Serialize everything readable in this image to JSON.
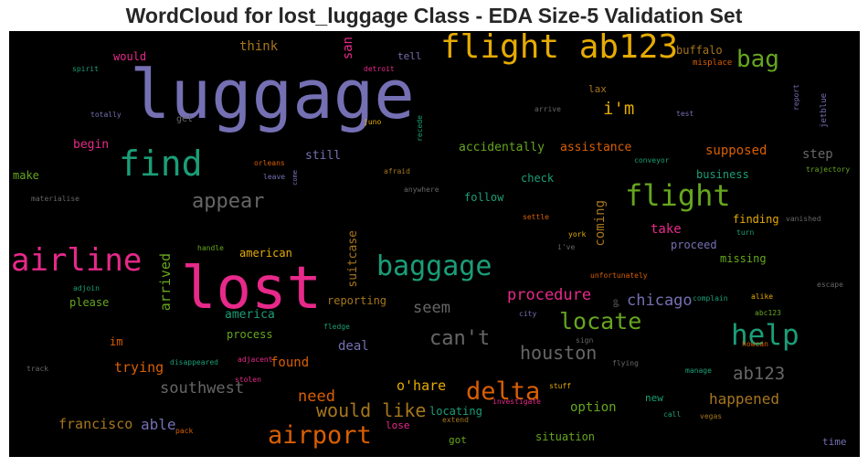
{
  "chart_data": {
    "type": "wordcloud",
    "title": "WordCloud for lost_luggage Class - EDA Size-5 Validation Set",
    "background": "#000000",
    "colormap": "Dark2",
    "words": [
      {
        "text": "luggage",
        "color": "#7570b3"
      },
      {
        "text": "lost",
        "color": "#e7298a"
      },
      {
        "text": "flight ab123",
        "color": "#e6ab02"
      },
      {
        "text": "find",
        "color": "#1b9e77"
      },
      {
        "text": "flight",
        "color": "#66a61e"
      },
      {
        "text": "baggage",
        "color": "#1b9e77"
      },
      {
        "text": "airline",
        "color": "#e7298a"
      },
      {
        "text": "airport",
        "color": "#d95f02"
      },
      {
        "text": "help",
        "color": "#1b9e77"
      },
      {
        "text": "delta",
        "color": "#d95f02"
      },
      {
        "text": "locate",
        "color": "#66a61e"
      },
      {
        "text": "bag",
        "color": "#66a61e"
      },
      {
        "text": "appear",
        "color": "#666666"
      },
      {
        "text": "can't",
        "color": "#666666"
      },
      {
        "text": "houston",
        "color": "#666666"
      },
      {
        "text": "would like",
        "color": "#a6761d"
      },
      {
        "text": "ab123",
        "color": "#666666"
      },
      {
        "text": "i'm",
        "color": "#e6ab02"
      },
      {
        "text": "chicago",
        "color": "#7570b3"
      },
      {
        "text": "procedure",
        "color": "#e7298a"
      },
      {
        "text": "need",
        "color": "#d95f02"
      },
      {
        "text": "southwest",
        "color": "#666666"
      },
      {
        "text": "seem",
        "color": "#666666"
      },
      {
        "text": "happened",
        "color": "#a6761d"
      },
      {
        "text": "francisco",
        "color": "#a6761d"
      },
      {
        "text": "able",
        "color": "#7570b3"
      },
      {
        "text": "o'hare",
        "color": "#e6ab02"
      },
      {
        "text": "trying",
        "color": "#d95f02"
      },
      {
        "text": "supposed",
        "color": "#d95f02"
      },
      {
        "text": "arrived",
        "color": "#66a61e"
      },
      {
        "text": "suitcase",
        "color": "#a6761d"
      },
      {
        "text": "coming",
        "color": "#a6761d"
      },
      {
        "text": "think",
        "color": "#a6761d"
      },
      {
        "text": "san",
        "color": "#e7298a"
      },
      {
        "text": "step",
        "color": "#666666"
      },
      {
        "text": "take",
        "color": "#e7298a"
      },
      {
        "text": "found",
        "color": "#d95f02"
      },
      {
        "text": "option",
        "color": "#66a61e"
      },
      {
        "text": "deal",
        "color": "#7570b3"
      },
      {
        "text": "accidentally",
        "color": "#66a61e"
      },
      {
        "text": "assistance",
        "color": "#d95f02"
      },
      {
        "text": "still",
        "color": "#7570b3"
      },
      {
        "text": "begin",
        "color": "#e7298a"
      },
      {
        "text": "america",
        "color": "#1b9e77"
      },
      {
        "text": "american",
        "color": "#e6ab02"
      },
      {
        "text": "reporting",
        "color": "#a6761d"
      },
      {
        "text": "process",
        "color": "#66a61e"
      },
      {
        "text": "locating",
        "color": "#1b9e77"
      },
      {
        "text": "situation",
        "color": "#66a61e"
      },
      {
        "text": "missing",
        "color": "#66a61e"
      },
      {
        "text": "proceed",
        "color": "#7570b3"
      },
      {
        "text": "business",
        "color": "#1b9e77"
      },
      {
        "text": "finding",
        "color": "#e6ab02"
      },
      {
        "text": "follow",
        "color": "#1b9e77"
      },
      {
        "text": "check",
        "color": "#1b9e77"
      },
      {
        "text": "buffalo",
        "color": "#a6761d"
      },
      {
        "text": "would",
        "color": "#e7298a"
      },
      {
        "text": "please",
        "color": "#66a61e"
      },
      {
        "text": "make",
        "color": "#66a61e"
      },
      {
        "text": "im",
        "color": "#d95f02"
      },
      {
        "text": "new",
        "color": "#1b9e77"
      },
      {
        "text": "got",
        "color": "#66a61e"
      },
      {
        "text": "lose",
        "color": "#e7298a"
      },
      {
        "text": "tell",
        "color": "#7570b3"
      },
      {
        "text": "lax",
        "color": "#a6761d"
      },
      {
        "text": "misplace",
        "color": "#d95f02"
      },
      {
        "text": "spirit",
        "color": "#1b9e77"
      },
      {
        "text": "detroit",
        "color": "#e7298a"
      },
      {
        "text": "totally",
        "color": "#7570b3"
      },
      {
        "text": "get",
        "color": "#666666"
      },
      {
        "text": "juno",
        "color": "#e6ab02"
      },
      {
        "text": "recede",
        "color": "#1b9e77"
      },
      {
        "text": "arrive",
        "color": "#666666"
      },
      {
        "text": "test",
        "color": "#7570b3"
      },
      {
        "text": "report",
        "color": "#7570b3"
      },
      {
        "text": "jetblue",
        "color": "#7570b3"
      },
      {
        "text": "conveyor",
        "color": "#1b9e77"
      },
      {
        "text": "trajectory",
        "color": "#66a61e"
      },
      {
        "text": "orleans",
        "color": "#d95f02"
      },
      {
        "text": "leave",
        "color": "#7570b3"
      },
      {
        "text": "come",
        "color": "#7570b3"
      },
      {
        "text": "afraid",
        "color": "#a6761d"
      },
      {
        "text": "anywhere",
        "color": "#666666"
      },
      {
        "text": "materialise",
        "color": "#666666"
      },
      {
        "text": "settle",
        "color": "#d95f02"
      },
      {
        "text": "vanished",
        "color": "#666666"
      },
      {
        "text": "york",
        "color": "#e6ab02"
      },
      {
        "text": "i've",
        "color": "#666666"
      },
      {
        "text": "turn",
        "color": "#1b9e77"
      },
      {
        "text": "handle",
        "color": "#66a61e"
      },
      {
        "text": "unfortunately",
        "color": "#d95f02"
      },
      {
        "text": "escape",
        "color": "#666666"
      },
      {
        "text": "adjoin",
        "color": "#1b9e77"
      },
      {
        "text": "complain",
        "color": "#1b9e77"
      },
      {
        "text": "alike",
        "color": "#e6ab02"
      },
      {
        "text": "go",
        "color": "#666666"
      },
      {
        "text": "abc123",
        "color": "#66a61e"
      },
      {
        "text": "city",
        "color": "#7570b3"
      },
      {
        "text": "fledge",
        "color": "#1b9e77"
      },
      {
        "text": "sign",
        "color": "#666666"
      },
      {
        "text": "howcan",
        "color": "#d95f02"
      },
      {
        "text": "disappeared",
        "color": "#1b9e77"
      },
      {
        "text": "flying",
        "color": "#666666"
      },
      {
        "text": "track",
        "color": "#666666"
      },
      {
        "text": "adjacent",
        "color": "#e7298a"
      },
      {
        "text": "manage",
        "color": "#1b9e77"
      },
      {
        "text": "stuff",
        "color": "#e6ab02"
      },
      {
        "text": "stolen",
        "color": "#e7298a"
      },
      {
        "text": "investigate",
        "color": "#e7298a"
      },
      {
        "text": "extend",
        "color": "#a6761d"
      },
      {
        "text": "call",
        "color": "#1b9e77"
      },
      {
        "text": "vegas",
        "color": "#a6761d"
      },
      {
        "text": "pack",
        "color": "#d95f02"
      },
      {
        "text": "time",
        "color": "#7570b3"
      }
    ]
  }
}
